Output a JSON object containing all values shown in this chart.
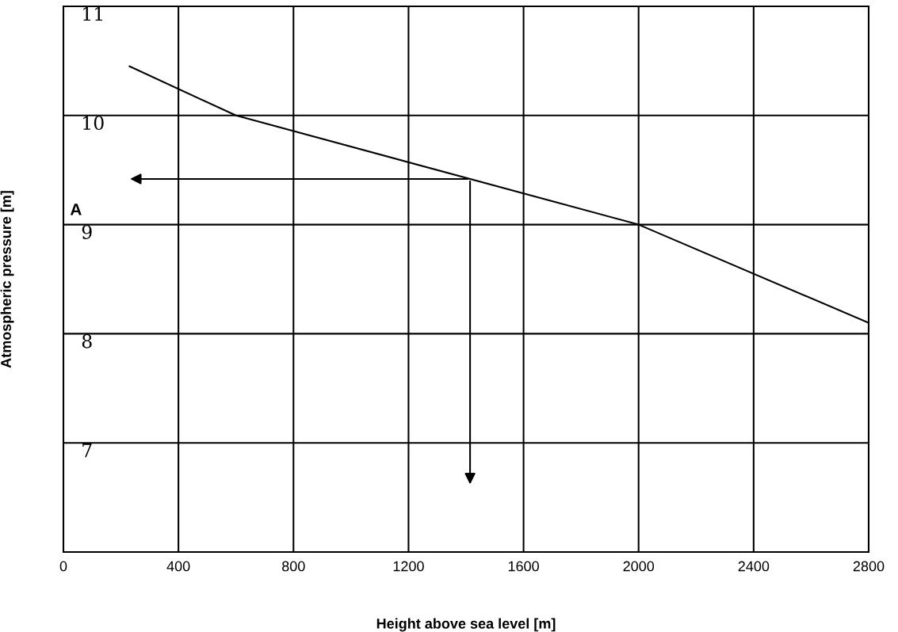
{
  "chart_data": {
    "type": "line",
    "xlabel": "Height above sea level [m]",
    "ylabel": "Atmospheric pressure [m]",
    "x": [
      230,
      600,
      2000,
      2800
    ],
    "series": [
      {
        "color": "#000000",
        "values": [
          10.45,
          10.0,
          9.0,
          8.1
        ]
      }
    ],
    "xlim": [
      0,
      2800
    ],
    "xticks": [
      0,
      400,
      800,
      1200,
      1600,
      2000,
      2400,
      2800
    ],
    "ylim": [
      6,
      11
    ],
    "yticks": [
      {
        "value": 6,
        "label": null
      },
      7,
      8,
      9,
      10,
      11
    ],
    "grid": true,
    "marker": "none",
    "line_style": "solid",
    "annotations": [
      "A"
    ]
  }
}
